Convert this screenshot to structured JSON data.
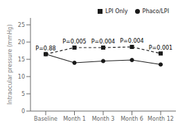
{
  "chart_data": {
    "type": "line",
    "categories": [
      "Baseline",
      "Month 1",
      "Month 3",
      "Month 6",
      "Month 12"
    ],
    "series": [
      {
        "name": "Phaco/LPI",
        "color": "#1a1a1a",
        "values": [
          16.5,
          14.0,
          14.5,
          14.8,
          13.5
        ],
        "marker": "circle",
        "line_style": "solid"
      },
      {
        "name": "LPI Only",
        "color": "#1a1a1a",
        "values": [
          16.5,
          18.4,
          18.4,
          18.6,
          16.7
        ],
        "marker": "square",
        "line_style": "dashed"
      }
    ],
    "ylabel": "Intraocular pressure (mmHg)",
    "ylim": [
      0,
      27
    ],
    "yticks": [
      0,
      5,
      10,
      15,
      20,
      25
    ],
    "legend": "upper right",
    "grid": false,
    "annotations": [
      {
        "text": "P=0.88",
        "x": "Baseline"
      },
      {
        "text": "P=0.005",
        "x": "Month 1"
      },
      {
        "text": "P=0.004",
        "x": "Month 3"
      },
      {
        "text": "P=0.004",
        "x": "Month 6"
      },
      {
        "text": "P=0.001",
        "x": "Month 12"
      }
    ]
  }
}
